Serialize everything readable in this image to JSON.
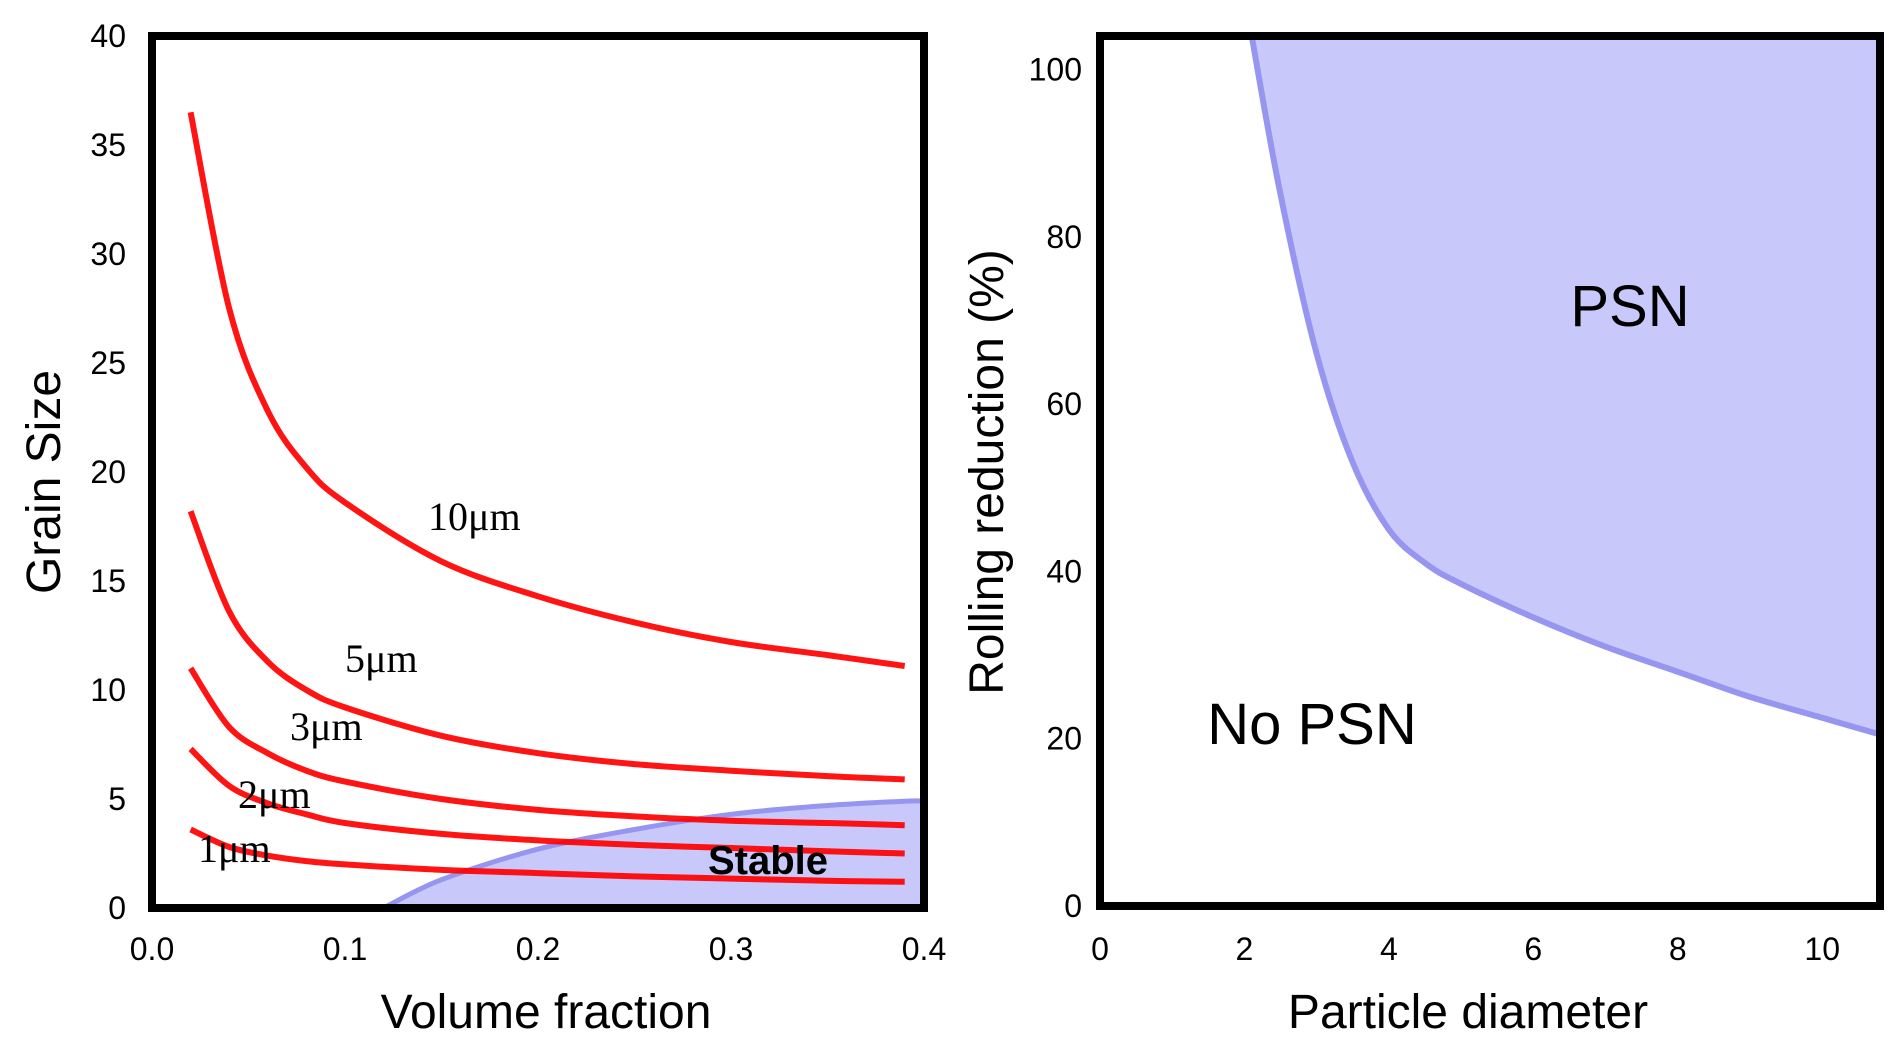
{
  "chart_data": [
    {
      "type": "line",
      "xlabel": "Volume fraction",
      "ylabel": "Grain Size",
      "xlim": [
        0.0,
        0.4
      ],
      "ylim": [
        0,
        40
      ],
      "xticks": [
        "0.0",
        "0.1",
        "0.2",
        "0.3",
        "0.4"
      ],
      "yticks": [
        "0",
        "5",
        "10",
        "15",
        "20",
        "25",
        "30",
        "35",
        "40"
      ],
      "series_color": "#ff0000",
      "region_color": "#c8c8fa",
      "region_edge_color": "#9696f0",
      "series": [
        {
          "name": "10μm",
          "x": [
            0.02,
            0.04,
            0.06,
            0.08,
            0.1,
            0.15,
            0.2,
            0.25,
            0.3,
            0.35,
            0.39
          ],
          "y": [
            36.5,
            27.5,
            22.8,
            20.2,
            18.6,
            15.9,
            14.3,
            13.1,
            12.2,
            11.6,
            11.1
          ]
        },
        {
          "name": "5μm",
          "x": [
            0.02,
            0.04,
            0.06,
            0.08,
            0.1,
            0.15,
            0.2,
            0.25,
            0.3,
            0.35,
            0.39
          ],
          "y": [
            18.2,
            13.6,
            11.3,
            10.0,
            9.2,
            7.9,
            7.1,
            6.6,
            6.3,
            6.05,
            5.9
          ]
        },
        {
          "name": "3μm",
          "x": [
            0.02,
            0.04,
            0.06,
            0.08,
            0.1,
            0.15,
            0.2,
            0.25,
            0.3,
            0.35,
            0.39
          ],
          "y": [
            11.0,
            8.3,
            7.1,
            6.3,
            5.8,
            5.0,
            4.5,
            4.2,
            4.0,
            3.9,
            3.8
          ]
        },
        {
          "name": "2μm",
          "x": [
            0.02,
            0.04,
            0.06,
            0.08,
            0.1,
            0.15,
            0.2,
            0.25,
            0.3,
            0.35,
            0.39
          ],
          "y": [
            7.3,
            5.6,
            4.8,
            4.3,
            3.9,
            3.4,
            3.1,
            2.9,
            2.75,
            2.6,
            2.5
          ]
        },
        {
          "name": "1μm",
          "x": [
            0.02,
            0.04,
            0.06,
            0.08,
            0.1,
            0.15,
            0.2,
            0.25,
            0.3,
            0.35,
            0.39
          ],
          "y": [
            3.6,
            2.8,
            2.4,
            2.15,
            2.0,
            1.75,
            1.6,
            1.45,
            1.35,
            1.25,
            1.2
          ]
        }
      ],
      "regions": [
        {
          "name": "Stable",
          "boundary_x": [
            0.12,
            0.15,
            0.2,
            0.25,
            0.3,
            0.35,
            0.39
          ],
          "boundary_y": [
            0.0,
            1.3,
            2.7,
            3.6,
            4.3,
            4.7,
            4.9
          ]
        }
      ]
    },
    {
      "type": "area",
      "xlabel": "Particle diameter",
      "ylabel": "Rolling reduction (%)",
      "xlim": [
        0,
        10.8
      ],
      "ylim": [
        0,
        104
      ],
      "xticks": [
        "0",
        "2",
        "4",
        "6",
        "8",
        "10"
      ],
      "yticks": [
        "0",
        "20",
        "40",
        "60",
        "80",
        "100"
      ],
      "region_color": "#c8c8fa",
      "region_edge_color": "#9696f0",
      "boundary": {
        "x": [
          2.1,
          2.5,
          3.0,
          3.5,
          4.0,
          4.5,
          5.0,
          6.0,
          7.0,
          8.0,
          9.0,
          10.0,
          10.8
        ],
        "y": [
          104,
          85,
          66,
          53,
          45,
          41,
          38.5,
          34.5,
          31,
          28,
          25,
          22.5,
          20.5
        ]
      },
      "regions": [
        {
          "name": "PSN",
          "side": "above"
        },
        {
          "name": "No PSN",
          "side": "below"
        }
      ]
    }
  ]
}
